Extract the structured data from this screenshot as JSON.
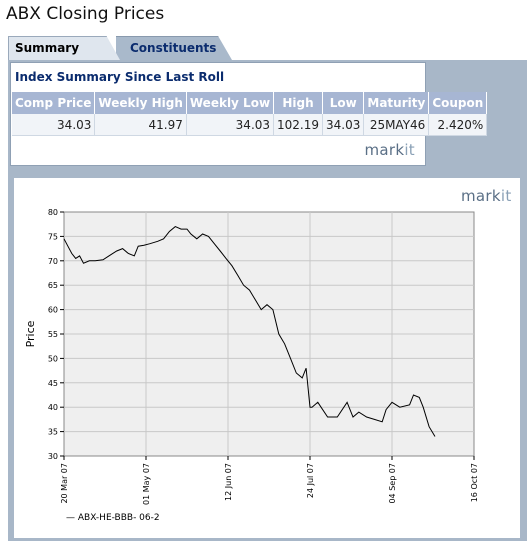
{
  "title": "ABX Closing Prices",
  "tabs": [
    {
      "label": "Summary",
      "active": true
    },
    {
      "label": "Constituents",
      "active": false
    }
  ],
  "summary": {
    "heading": "Index Summary Since Last Roll",
    "columns": [
      "Comp Price",
      "Weekly High",
      "Weekly Low",
      "High",
      "Low",
      "Maturity",
      "Coupon"
    ],
    "row": [
      "34.03",
      "41.97",
      "34.03",
      "102.19",
      "34.03",
      "25MAY46",
      "2.420%"
    ]
  },
  "logo": {
    "mark": "mark",
    "it": "it"
  },
  "colors": {
    "header_bg": "#a7b6d3",
    "frame_bg": "#a8b7c8",
    "plot_bg": "#efefef",
    "tab_active": "#dfe6ee",
    "tab_inactive": "#a9b9cb"
  },
  "chart_data": {
    "type": "line",
    "ylabel": "Price",
    "xlabel": "",
    "ylim": [
      30,
      80
    ],
    "yticks": [
      "30",
      "35",
      "40",
      "45",
      "50",
      "55",
      "60",
      "65",
      "70",
      "75",
      "80"
    ],
    "xlim": [
      "2007-03-20",
      "2007-10-16"
    ],
    "xticks": [
      "20 Mar 07",
      "01 May 07",
      "12 Jun 07",
      "24 Jul 07",
      "04 Sep 07",
      "16 Oct 07"
    ],
    "grid": true,
    "legend": "bottom-left",
    "series": [
      {
        "name": "ABX-HE-BBB- 06-2",
        "x": [
          "2007-03-20",
          "2007-03-22",
          "2007-03-24",
          "2007-03-26",
          "2007-03-28",
          "2007-03-30",
          "2007-04-02",
          "2007-04-05",
          "2007-04-09",
          "2007-04-12",
          "2007-04-16",
          "2007-04-19",
          "2007-04-22",
          "2007-04-25",
          "2007-04-27",
          "2007-04-30",
          "2007-05-03",
          "2007-05-07",
          "2007-05-10",
          "2007-05-13",
          "2007-05-16",
          "2007-05-19",
          "2007-05-22",
          "2007-05-24",
          "2007-05-27",
          "2007-05-30",
          "2007-06-02",
          "2007-06-05",
          "2007-06-08",
          "2007-06-11",
          "2007-06-14",
          "2007-06-17",
          "2007-06-20",
          "2007-06-23",
          "2007-06-26",
          "2007-06-29",
          "2007-07-02",
          "2007-07-05",
          "2007-07-08",
          "2007-07-11",
          "2007-07-14",
          "2007-07-17",
          "2007-07-20",
          "2007-07-22",
          "2007-07-24",
          "2007-07-25",
          "2007-07-28",
          "2007-08-02",
          "2007-08-07",
          "2007-08-12",
          "2007-08-15",
          "2007-08-18",
          "2007-08-22",
          "2007-08-26",
          "2007-08-30",
          "2007-09-01",
          "2007-09-04",
          "2007-09-08",
          "2007-09-13",
          "2007-09-15",
          "2007-09-18",
          "2007-09-20",
          "2007-09-23",
          "2007-09-26"
        ],
        "values": [
          74.5,
          73,
          71.5,
          70.5,
          71,
          69.5,
          70,
          70,
          70.2,
          71,
          72,
          72.5,
          71.5,
          71,
          73,
          73.2,
          73.5,
          74,
          74.5,
          76,
          77,
          76.5,
          76.5,
          75.5,
          74.5,
          75.5,
          75,
          73.5,
          72,
          70.5,
          69,
          67,
          65,
          64,
          62,
          60,
          61,
          60,
          55,
          53,
          50,
          47,
          46,
          48,
          40,
          40,
          41,
          38,
          38,
          41,
          38,
          39,
          38,
          37.5,
          37,
          39.5,
          41,
          40,
          40.5,
          42.5,
          42,
          40,
          36,
          34
        ]
      }
    ]
  }
}
